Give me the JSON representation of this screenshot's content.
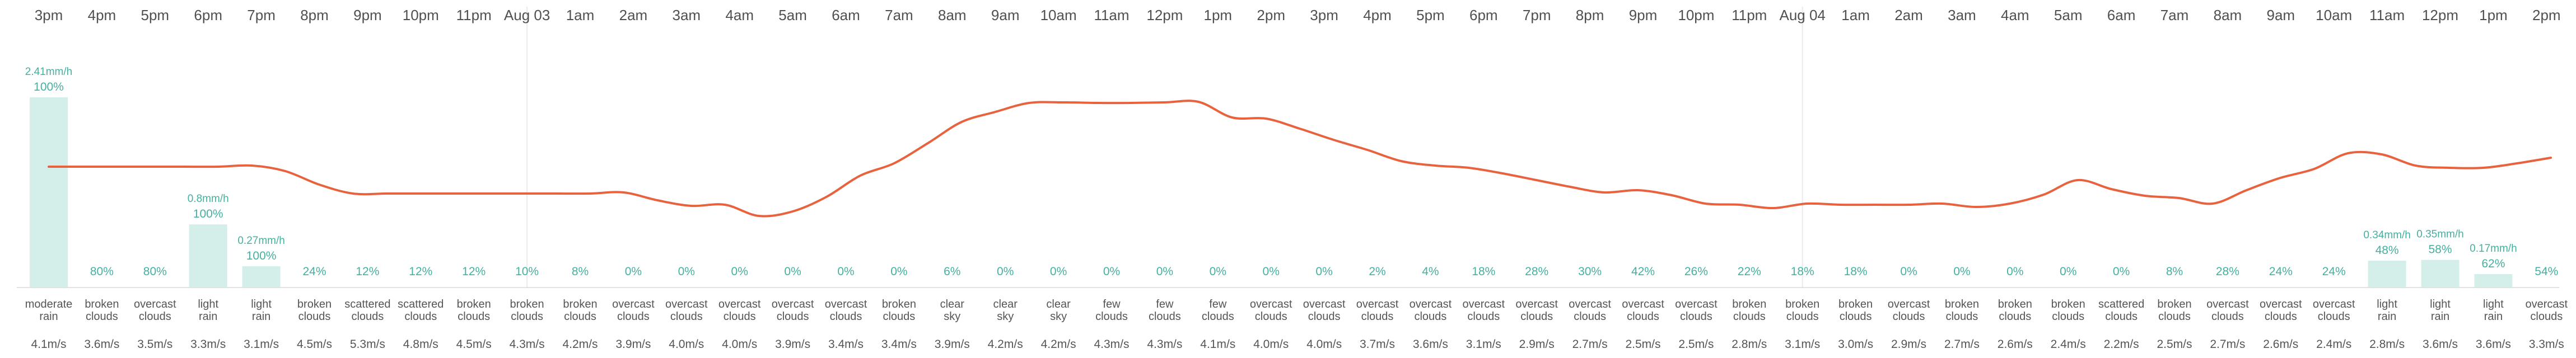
{
  "colors": {
    "temperature_line": "#e8623e",
    "precip_bar": "#d4eeea",
    "precip_text": "#45b0a0",
    "divider": "#eaeaea",
    "text": "#505050"
  },
  "hourly": [
    {
      "time": "3pm",
      "desc": [
        "moderate",
        "rain"
      ],
      "wind": "4.1m/s",
      "pop": "100%",
      "precip": "2.41mm/h",
      "precip_mm": 2.41
    },
    {
      "time": "4pm",
      "desc": [
        "broken",
        "clouds"
      ],
      "wind": "3.6m/s",
      "pop": "80%",
      "precip": "",
      "precip_mm": 0
    },
    {
      "time": "5pm",
      "desc": [
        "overcast",
        "clouds"
      ],
      "wind": "3.5m/s",
      "pop": "80%",
      "precip": "",
      "precip_mm": 0
    },
    {
      "time": "6pm",
      "desc": [
        "light",
        "rain"
      ],
      "wind": "3.3m/s",
      "pop": "100%",
      "precip": "0.8mm/h",
      "precip_mm": 0.8
    },
    {
      "time": "7pm",
      "desc": [
        "light",
        "rain"
      ],
      "wind": "3.1m/s",
      "pop": "100%",
      "precip": "0.27mm/h",
      "precip_mm": 0.27
    },
    {
      "time": "8pm",
      "desc": [
        "broken",
        "clouds"
      ],
      "wind": "4.5m/s",
      "pop": "24%",
      "precip": "",
      "precip_mm": 0
    },
    {
      "time": "9pm",
      "desc": [
        "scattered",
        "clouds"
      ],
      "wind": "5.3m/s",
      "pop": "12%",
      "precip": "",
      "precip_mm": 0
    },
    {
      "time": "10pm",
      "desc": [
        "scattered",
        "clouds"
      ],
      "wind": "4.8m/s",
      "pop": "12%",
      "precip": "",
      "precip_mm": 0
    },
    {
      "time": "11pm",
      "desc": [
        "broken",
        "clouds"
      ],
      "wind": "4.5m/s",
      "pop": "12%",
      "precip": "",
      "precip_mm": 0
    },
    {
      "time": "Aug 03",
      "desc": [
        "broken",
        "clouds"
      ],
      "wind": "4.3m/s",
      "pop": "10%",
      "precip": "",
      "precip_mm": 0
    },
    {
      "time": "1am",
      "desc": [
        "broken",
        "clouds"
      ],
      "wind": "4.2m/s",
      "pop": "8%",
      "precip": "",
      "precip_mm": 0
    },
    {
      "time": "2am",
      "desc": [
        "overcast",
        "clouds"
      ],
      "wind": "3.9m/s",
      "pop": "0%",
      "precip": "",
      "precip_mm": 0
    },
    {
      "time": "3am",
      "desc": [
        "overcast",
        "clouds"
      ],
      "wind": "4.0m/s",
      "pop": "0%",
      "precip": "",
      "precip_mm": 0
    },
    {
      "time": "4am",
      "desc": [
        "overcast",
        "clouds"
      ],
      "wind": "4.0m/s",
      "pop": "0%",
      "precip": "",
      "precip_mm": 0
    },
    {
      "time": "5am",
      "desc": [
        "overcast",
        "clouds"
      ],
      "wind": "3.9m/s",
      "pop": "0%",
      "precip": "",
      "precip_mm": 0
    },
    {
      "time": "6am",
      "desc": [
        "overcast",
        "clouds"
      ],
      "wind": "3.4m/s",
      "pop": "0%",
      "precip": "",
      "precip_mm": 0
    },
    {
      "time": "7am",
      "desc": [
        "broken",
        "clouds"
      ],
      "wind": "3.4m/s",
      "pop": "0%",
      "precip": "",
      "precip_mm": 0
    },
    {
      "time": "8am",
      "desc": [
        "clear",
        "sky"
      ],
      "wind": "3.9m/s",
      "pop": "6%",
      "precip": "",
      "precip_mm": 0
    },
    {
      "time": "9am",
      "desc": [
        "clear",
        "sky"
      ],
      "wind": "4.2m/s",
      "pop": "0%",
      "precip": "",
      "precip_mm": 0
    },
    {
      "time": "10am",
      "desc": [
        "clear",
        "sky"
      ],
      "wind": "4.2m/s",
      "pop": "0%",
      "precip": "",
      "precip_mm": 0
    },
    {
      "time": "11am",
      "desc": [
        "few",
        "clouds"
      ],
      "wind": "4.3m/s",
      "pop": "0%",
      "precip": "",
      "precip_mm": 0
    },
    {
      "time": "12pm",
      "desc": [
        "few",
        "clouds"
      ],
      "wind": "4.3m/s",
      "pop": "0%",
      "precip": "",
      "precip_mm": 0
    },
    {
      "time": "1pm",
      "desc": [
        "few",
        "clouds"
      ],
      "wind": "4.1m/s",
      "pop": "0%",
      "precip": "",
      "precip_mm": 0
    },
    {
      "time": "2pm",
      "desc": [
        "overcast",
        "clouds"
      ],
      "wind": "4.0m/s",
      "pop": "0%",
      "precip": "",
      "precip_mm": 0
    },
    {
      "time": "3pm",
      "desc": [
        "overcast",
        "clouds"
      ],
      "wind": "4.0m/s",
      "pop": "0%",
      "precip": "",
      "precip_mm": 0
    },
    {
      "time": "4pm",
      "desc": [
        "overcast",
        "clouds"
      ],
      "wind": "3.7m/s",
      "pop": "2%",
      "precip": "",
      "precip_mm": 0
    },
    {
      "time": "5pm",
      "desc": [
        "overcast",
        "clouds"
      ],
      "wind": "3.6m/s",
      "pop": "4%",
      "precip": "",
      "precip_mm": 0
    },
    {
      "time": "6pm",
      "desc": [
        "overcast",
        "clouds"
      ],
      "wind": "3.1m/s",
      "pop": "18%",
      "precip": "",
      "precip_mm": 0
    },
    {
      "time": "7pm",
      "desc": [
        "overcast",
        "clouds"
      ],
      "wind": "2.9m/s",
      "pop": "28%",
      "precip": "",
      "precip_mm": 0
    },
    {
      "time": "8pm",
      "desc": [
        "overcast",
        "clouds"
      ],
      "wind": "2.7m/s",
      "pop": "30%",
      "precip": "",
      "precip_mm": 0
    },
    {
      "time": "9pm",
      "desc": [
        "overcast",
        "clouds"
      ],
      "wind": "2.5m/s",
      "pop": "42%",
      "precip": "",
      "precip_mm": 0
    },
    {
      "time": "10pm",
      "desc": [
        "overcast",
        "clouds"
      ],
      "wind": "2.5m/s",
      "pop": "26%",
      "precip": "",
      "precip_mm": 0
    },
    {
      "time": "11pm",
      "desc": [
        "broken",
        "clouds"
      ],
      "wind": "2.8m/s",
      "pop": "22%",
      "precip": "",
      "precip_mm": 0
    },
    {
      "time": "Aug 04",
      "desc": [
        "broken",
        "clouds"
      ],
      "wind": "3.1m/s",
      "pop": "18%",
      "precip": "",
      "precip_mm": 0
    },
    {
      "time": "1am",
      "desc": [
        "broken",
        "clouds"
      ],
      "wind": "3.0m/s",
      "pop": "18%",
      "precip": "",
      "precip_mm": 0
    },
    {
      "time": "2am",
      "desc": [
        "overcast",
        "clouds"
      ],
      "wind": "2.9m/s",
      "pop": "0%",
      "precip": "",
      "precip_mm": 0
    },
    {
      "time": "3am",
      "desc": [
        "broken",
        "clouds"
      ],
      "wind": "2.7m/s",
      "pop": "0%",
      "precip": "",
      "precip_mm": 0
    },
    {
      "time": "4am",
      "desc": [
        "broken",
        "clouds"
      ],
      "wind": "2.6m/s",
      "pop": "0%",
      "precip": "",
      "precip_mm": 0
    },
    {
      "time": "5am",
      "desc": [
        "broken",
        "clouds"
      ],
      "wind": "2.4m/s",
      "pop": "0%",
      "precip": "",
      "precip_mm": 0
    },
    {
      "time": "6am",
      "desc": [
        "scattered",
        "clouds"
      ],
      "wind": "2.2m/s",
      "pop": "0%",
      "precip": "",
      "precip_mm": 0
    },
    {
      "time": "7am",
      "desc": [
        "broken",
        "clouds"
      ],
      "wind": "2.5m/s",
      "pop": "8%",
      "precip": "",
      "precip_mm": 0
    },
    {
      "time": "8am",
      "desc": [
        "overcast",
        "clouds"
      ],
      "wind": "2.7m/s",
      "pop": "28%",
      "precip": "",
      "precip_mm": 0
    },
    {
      "time": "9am",
      "desc": [
        "overcast",
        "clouds"
      ],
      "wind": "2.6m/s",
      "pop": "24%",
      "precip": "",
      "precip_mm": 0
    },
    {
      "time": "10am",
      "desc": [
        "overcast",
        "clouds"
      ],
      "wind": "2.4m/s",
      "pop": "24%",
      "precip": "",
      "precip_mm": 0
    },
    {
      "time": "11am",
      "desc": [
        "light",
        "rain"
      ],
      "wind": "2.8m/s",
      "pop": "48%",
      "precip": "0.34mm/h",
      "precip_mm": 0.34
    },
    {
      "time": "12pm",
      "desc": [
        "light",
        "rain"
      ],
      "wind": "3.6m/s",
      "pop": "58%",
      "precip": "0.35mm/h",
      "precip_mm": 0.35
    },
    {
      "time": "1pm",
      "desc": [
        "light",
        "rain"
      ],
      "wind": "3.6m/s",
      "pop": "62%",
      "precip": "0.17mm/h",
      "precip_mm": 0.17
    },
    {
      "time": "2pm",
      "desc": [
        "overcast",
        "clouds"
      ],
      "wind": "3.3m/s",
      "pop": "54%",
      "precip": "",
      "precip_mm": 0
    }
  ]
}
